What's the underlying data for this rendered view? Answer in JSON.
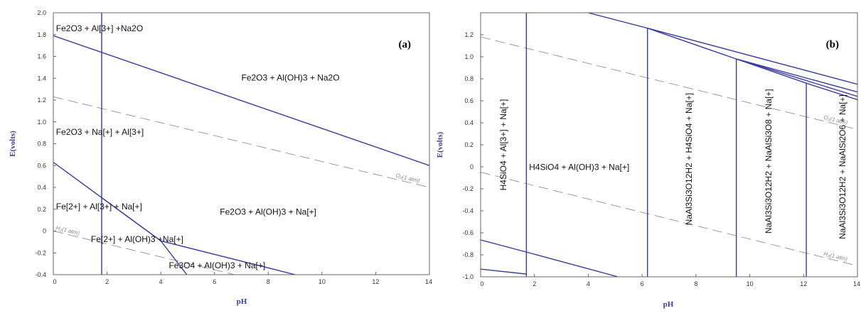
{
  "colors": {
    "boundary": "#3a3aa0",
    "water": "#9a9a9a",
    "frame": "#666666"
  },
  "chart_data": [
    {
      "type": "line",
      "panel_label": "(a)",
      "xlabel": "pH",
      "ylabel": "E(volts)",
      "xlim": [
        0,
        14
      ],
      "ylim": [
        -0.4,
        2.0
      ],
      "x_ticks": [
        0,
        2,
        4,
        6,
        8,
        10,
        12,
        14
      ],
      "y_ticks": [
        -0.4,
        -0.2,
        0,
        0.2,
        0.4,
        0.6,
        0.8,
        1.0,
        1.2,
        1.4,
        1.6,
        1.8,
        2.0
      ],
      "grid": false,
      "boundaries": [
        {
          "points": [
            [
              1.8,
              -0.4
            ],
            [
              1.8,
              2.0
            ]
          ]
        },
        {
          "points": [
            [
              0,
              1.79
            ],
            [
              14,
              0.6
            ]
          ]
        },
        {
          "points": [
            [
              0,
              0.63
            ],
            [
              4.0,
              -0.09
            ],
            [
              4.97,
              -0.4
            ]
          ]
        },
        {
          "points": [
            [
              1.8,
              0.305
            ],
            [
              4.0,
              -0.09
            ],
            [
              9.0,
              -0.4
            ]
          ]
        }
      ],
      "water_lines": [
        {
          "label": "O₂(1 atm)",
          "points": [
            [
              0,
              1.23
            ],
            [
              14,
              0.4
            ]
          ]
        },
        {
          "label": "H₂(1 atm)",
          "points": [
            [
              0,
              0.0
            ],
            [
              14,
              -0.83
            ]
          ]
        }
      ],
      "regions": [
        {
          "label": "Fe2O3 + Al[3+] +Na2O",
          "x": 0.1,
          "y": 1.83
        },
        {
          "label": "Fe2O3 + Al(OH)3 + Na2O",
          "x": 7.0,
          "y": 1.38
        },
        {
          "label": "Fe2O3 + Na[+] + Al[3+]",
          "x": 0.1,
          "y": 0.88
        },
        {
          "label": "Fe[2+] + Al[3+] + Na[+]",
          "x": 0.1,
          "y": 0.2
        },
        {
          "label": "Fe2O3 + Al(OH)3 + Na[+]",
          "x": 6.2,
          "y": 0.15
        },
        {
          "label": "Fe[2+] + Al(OH)3 +Na[+]",
          "x": 1.4,
          "y": -0.1
        },
        {
          "label": "Fe3O4 + Al(OH)3 + Na[+]",
          "x": 4.3,
          "y": -0.34
        }
      ]
    },
    {
      "type": "line",
      "panel_label": "(b)",
      "xlabel": "pH",
      "ylabel": "E(volts)",
      "xlim": [
        0,
        14
      ],
      "ylim": [
        -1.0,
        1.4
      ],
      "x_ticks": [
        0,
        2,
        4,
        6,
        8,
        10,
        12,
        14
      ],
      "y_ticks": [
        -1.0,
        -0.8,
        -0.6,
        -0.4,
        -0.2,
        0,
        0.2,
        0.4,
        0.6,
        0.8,
        1.0,
        1.2
      ],
      "grid": false,
      "boundaries": [
        {
          "points": [
            [
              1.7,
              -1.0
            ],
            [
              1.7,
              1.4
            ]
          ]
        },
        {
          "points": [
            [
              6.2,
              -1.0
            ],
            [
              6.2,
              1.26
            ]
          ]
        },
        {
          "points": [
            [
              9.5,
              -1.0
            ],
            [
              9.5,
              0.98
            ]
          ]
        },
        {
          "points": [
            [
              12.1,
              -1.0
            ],
            [
              12.1,
              0.76
            ]
          ]
        },
        {
          "points": [
            [
              4.0,
              1.4
            ],
            [
              6.2,
              1.26
            ]
          ]
        },
        {
          "points": [
            [
              6.2,
              1.26
            ],
            [
              14,
              0.75
            ]
          ]
        },
        {
          "points": [
            [
              6.2,
              1.26
            ],
            [
              9.5,
              0.98
            ],
            [
              14,
              0.68
            ]
          ]
        },
        {
          "points": [
            [
              9.5,
              0.98
            ],
            [
              14,
              0.64
            ]
          ]
        },
        {
          "points": [
            [
              9.5,
              0.98
            ],
            [
              12.1,
              0.76
            ],
            [
              14,
              0.61
            ]
          ]
        },
        {
          "points": [
            [
              0,
              -0.665
            ],
            [
              1.7,
              -0.775
            ],
            [
              5.1,
              -1.0
            ]
          ]
        },
        {
          "points": [
            [
              0,
              -0.93
            ],
            [
              1.7,
              -0.975
            ]
          ]
        }
      ],
      "water_lines": [
        {
          "label": "O₂(1 atm)",
          "points": [
            [
              0,
              1.18
            ],
            [
              14,
              0.34
            ]
          ]
        },
        {
          "label": "H₂(1 atm)",
          "points": [
            [
              0,
              -0.05
            ],
            [
              14,
              -0.9
            ]
          ]
        }
      ],
      "regions": [
        {
          "label": "H4SiO4 + Al(OH)3 + Na[+]",
          "x": 1.8,
          "y": -0.03,
          "rotate": false
        },
        {
          "label": "H4SiO4 + Al[3+] + Na[+]",
          "x": 0.95,
          "y": 0.2,
          "rotate": true
        },
        {
          "label": "NaAl3Si3O12H2 + H4SiO4 + Na[+]",
          "x": 7.85,
          "y": 0.07,
          "rotate": true
        },
        {
          "label": "NaAl3Si3O12H2 + NaAlSi3O8 + Na[+]",
          "x": 10.8,
          "y": 0.05,
          "rotate": true
        },
        {
          "label": "NaAl3Si3O12H2 + NaAlSi2O6 + Na[+]",
          "x": 13.55,
          "y": 0.0,
          "rotate": true
        }
      ]
    }
  ]
}
